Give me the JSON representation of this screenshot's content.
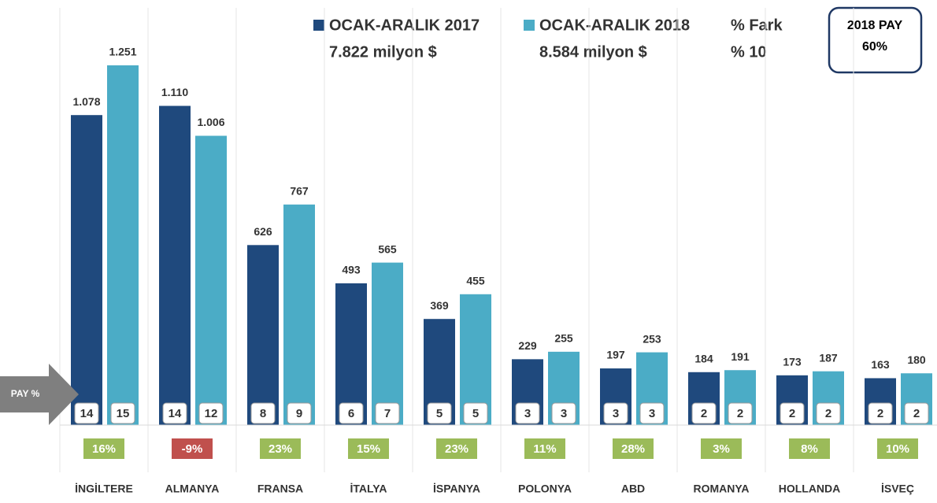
{
  "chart_data": {
    "type": "bar",
    "categories": [
      "İNGİLTERE",
      "ALMANYA",
      "FRANSA",
      "İTALYA",
      "İSPANYA",
      "POLONYA",
      "ABD",
      "ROMANYA",
      "HOLLANDA",
      "İSVEÇ"
    ],
    "series": [
      {
        "name": "OCAK-ARALIK 2017",
        "total": "7.822 milyon $",
        "color": "#1f497d",
        "values": [
          1078,
          1110,
          626,
          493,
          369,
          229,
          197,
          184,
          173,
          163
        ],
        "value_labels": [
          "1.078",
          "1.110",
          "626",
          "493",
          "369",
          "229",
          "197",
          "184",
          "173",
          "163"
        ],
        "pay": [
          14,
          14,
          8,
          6,
          5,
          3,
          3,
          2,
          2,
          2
        ]
      },
      {
        "name": "OCAK-ARALIK 2018",
        "total": "8.584 milyon $",
        "color": "#4bacc6",
        "values": [
          1251,
          1006,
          767,
          565,
          455,
          255,
          253,
          191,
          187,
          180
        ],
        "value_labels": [
          "1.251",
          "1.006",
          "767",
          "565",
          "455",
          "255",
          "253",
          "191",
          "187",
          "180"
        ],
        "pay": [
          15,
          12,
          9,
          7,
          5,
          3,
          3,
          2,
          2,
          2
        ]
      }
    ],
    "change": {
      "name": "% Fark",
      "total": "% 10",
      "values": [
        16,
        -9,
        23,
        15,
        23,
        11,
        28,
        3,
        8,
        10
      ],
      "value_labels": [
        "16%",
        "-9%",
        "23%",
        "15%",
        "23%",
        "11%",
        "28%",
        "3%",
        "8%",
        "10%"
      ],
      "colors": {
        "positive": "#9bbb59",
        "negative": "#c0504d"
      }
    },
    "share_box": {
      "title": "2018 PAY",
      "value": "60%"
    },
    "pay_label": "PAY %"
  }
}
